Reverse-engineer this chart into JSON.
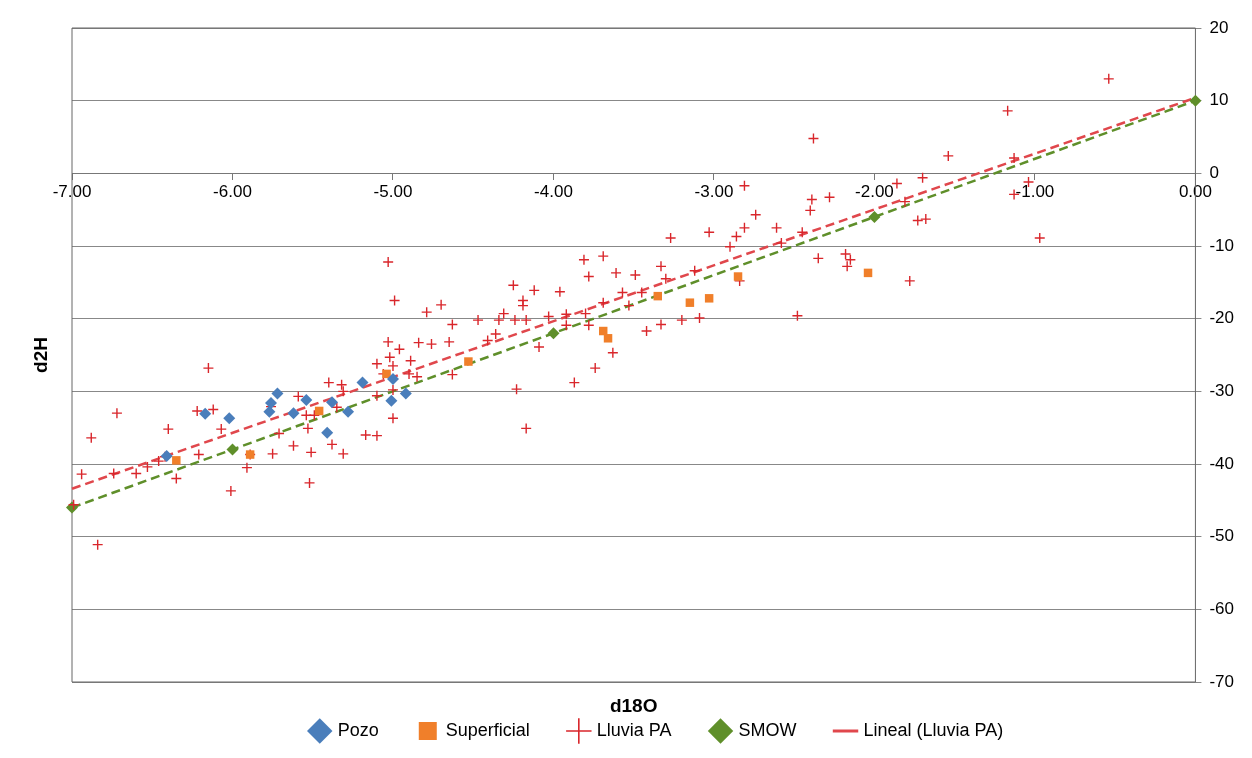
{
  "chart_data": {
    "type": "scatter",
    "xlabel": "d18O",
    "ylabel": "d2H",
    "xlim": [
      -7,
      0
    ],
    "xticks": [
      {
        "value": -7,
        "label": "-7.00"
      },
      {
        "value": -6,
        "label": "-6.00"
      },
      {
        "value": -5,
        "label": "-5.00"
      },
      {
        "value": -4,
        "label": "-4.00"
      },
      {
        "value": -3,
        "label": "-3.00"
      },
      {
        "value": -2,
        "label": "-2.00"
      },
      {
        "value": -1,
        "label": "-1.00"
      },
      {
        "value": 0,
        "label": "0.00"
      }
    ],
    "ylim": [
      -70,
      20
    ],
    "yticks": [
      -70,
      -60,
      -50,
      -40,
      -30,
      -20,
      -10,
      0,
      10,
      20
    ],
    "grid": "y",
    "legend": "bottom",
    "series": [
      {
        "name": "Pozo",
        "type": "scatter",
        "marker": "diamond",
        "color": "#4a7ebb",
        "x": [
          -6.41,
          -6.17,
          -6.02,
          -5.77,
          -5.76,
          -5.72,
          -5.62,
          -5.54,
          -5.41,
          -5.38,
          -5.28,
          -5.19,
          -5.01,
          -5.0,
          -4.92
        ],
        "values": [
          -38.9,
          -33.1,
          -33.7,
          -32.8,
          -31.6,
          -30.3,
          -33.0,
          -31.2,
          -35.7,
          -31.5,
          -32.8,
          -28.8,
          -31.3,
          -28.3,
          -30.3
        ]
      },
      {
        "name": "Superficial",
        "type": "scatter",
        "marker": "square",
        "color": "#f07f2a",
        "x": [
          -6.35,
          -5.89,
          -5.46,
          -5.04,
          -4.53,
          -3.69,
          -3.66,
          -3.35,
          -3.15,
          -3.03,
          -2.85,
          -2.04
        ],
        "values": [
          -39.5,
          -38.7,
          -32.7,
          -27.6,
          -25.9,
          -21.7,
          -22.7,
          -16.9,
          -17.8,
          -17.2,
          -14.2,
          -13.7
        ]
      },
      {
        "name": "Lluvia PA",
        "type": "scatter",
        "marker": "cross",
        "color": "#d9262b",
        "x": [
          -5.03,
          -5.02,
          -5.1,
          -6.15,
          -5.0,
          -5.4,
          -5.32,
          -5.31,
          -5.59,
          -5.1,
          -5.0,
          -5.76,
          -6.22,
          -6.12,
          -6.72,
          -5.54,
          -5.49,
          -5.35,
          -5.0,
          -6.4,
          -6.07,
          -5.71,
          -5.53,
          -5.17,
          -5.1,
          -6.88,
          -5.62,
          -5.38,
          -5.31,
          -5.51,
          -5.75,
          -6.21,
          -5.89,
          -6.42,
          -6.46,
          -6.53,
          -6.6,
          -6.74,
          -6.94,
          -6.35,
          -5.91,
          -5.52,
          -6.01,
          -6.99,
          -6.84,
          -5.03,
          -4.99,
          -4.79,
          -4.7,
          -4.63,
          -4.47,
          -4.34,
          -4.31,
          -4.24,
          -4.17,
          -4.25,
          -4.12,
          -4.19,
          -4.19,
          -3.96,
          -4.36,
          -4.41,
          -4.65,
          -4.76,
          -4.84,
          -4.96,
          -4.89,
          -5.06,
          -4.9,
          -4.85,
          -4.63,
          -4.09,
          -4.03,
          -3.92,
          -3.92,
          -3.8,
          -3.78,
          -3.81,
          -3.69,
          -3.78,
          -3.61,
          -3.49,
          -3.33,
          -3.3,
          -3.27,
          -3.57,
          -3.45,
          -3.69,
          -3.53,
          -3.33,
          -3.42,
          -3.2,
          -3.63,
          -3.74,
          -3.87,
          -4.23,
          -4.17,
          -2.81,
          -2.74,
          -2.81,
          -3.03,
          -2.86,
          -2.9,
          -2.61,
          -2.58,
          -2.45,
          -2.39,
          -2.4,
          -2.28,
          -2.35,
          -2.18,
          -2.15,
          -2.17,
          -1.86,
          -1.7,
          -1.81,
          -1.73,
          -1.68,
          -1.78,
          -3.12,
          -2.84,
          -3.09,
          -2.48,
          -0.54,
          -1.17,
          -1.54,
          -1.13,
          -1.04,
          -1.13,
          -0.97,
          -2.38
        ],
        "values": [
          -23.2,
          -25.3,
          -26.2,
          -26.8,
          -26.5,
          -28.8,
          -29.1,
          -30.0,
          -30.7,
          -30.6,
          -29.8,
          -32.1,
          -32.7,
          -32.5,
          -33.0,
          -33.3,
          -33.3,
          -32.2,
          -33.7,
          -35.2,
          -35.2,
          -35.8,
          -35.1,
          -36.0,
          -36.1,
          -36.4,
          -37.5,
          -37.3,
          -38.6,
          -38.4,
          -38.6,
          -38.7,
          -38.7,
          -39.0,
          -39.6,
          -40.4,
          -41.3,
          -41.3,
          -41.4,
          -42.0,
          -40.5,
          -42.6,
          -43.7,
          -45.6,
          -51.1,
          -12.2,
          -17.5,
          -19.1,
          -18.1,
          -20.8,
          -20.2,
          -20.2,
          -19.3,
          -20.2,
          -20.2,
          -15.4,
          -16.1,
          -17.5,
          -18.2,
          -16.3,
          -22.1,
          -23.0,
          -23.2,
          -23.5,
          -23.3,
          -24.2,
          -25.8,
          -27.6,
          -27.6,
          -28.0,
          -27.7,
          -23.9,
          -19.7,
          -19.4,
          -20.9,
          -19.3,
          -20.9,
          -11.9,
          -11.4,
          -14.2,
          -13.7,
          -14.0,
          -12.8,
          -14.5,
          -8.9,
          -16.4,
          -16.4,
          -17.8,
          -18.2,
          -20.8,
          -21.7,
          -20.2,
          -24.7,
          -26.8,
          -28.8,
          -29.7,
          -35.1,
          -1.7,
          -5.7,
          -7.5,
          -8.1,
          -8.7,
          -10.1,
          -7.5,
          -9.6,
          -8.1,
          -3.6,
          -5.1,
          -3.3,
          -11.7,
          -11.1,
          -11.9,
          -12.8,
          -1.4,
          -0.6,
          -3.9,
          -6.5,
          -6.3,
          -14.8,
          -13.4,
          -14.8,
          -19.9,
          -19.6,
          13.0,
          8.6,
          2.4,
          2.1,
          -1.2,
          -2.9,
          -8.9,
          4.8
        ]
      },
      {
        "name": "SMOW",
        "type": "line",
        "marker": "diamond",
        "line_style": "dashed",
        "color": "#5f8f2a",
        "x": [
          -7,
          -6,
          -4,
          -2,
          0
        ],
        "values": [
          -46,
          -38,
          -22,
          -6,
          10
        ]
      },
      {
        "name": "Lineal (Lluvia PA)",
        "type": "line",
        "marker": "none",
        "line_style": "dashed",
        "color": "#e0474c",
        "x": [
          -7,
          0
        ],
        "values": [
          -43.4,
          10.4
        ]
      }
    ]
  }
}
